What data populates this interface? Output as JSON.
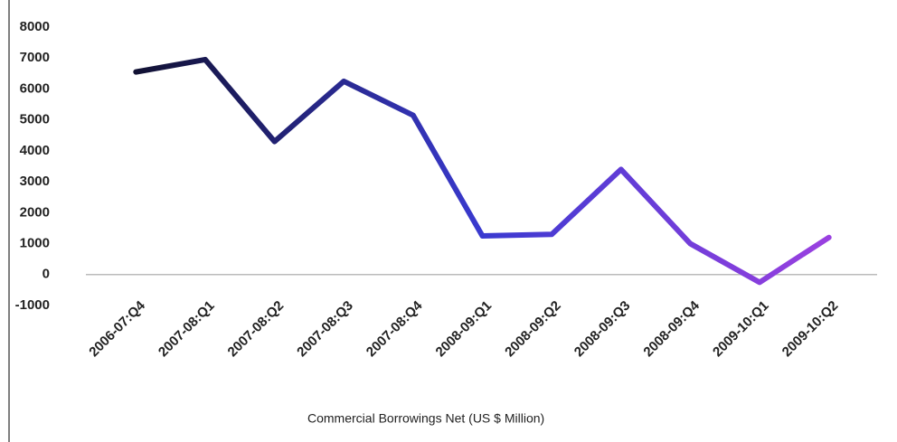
{
  "chart_data": {
    "type": "line",
    "categories": [
      "2006-07:Q4",
      "2007-08:Q1",
      "2007-08:Q2",
      "2007-08:Q3",
      "2007-08:Q4",
      "2008-09:Q1",
      "2008-09:Q2",
      "2008-09:Q3",
      "2008-09:Q4",
      "2009-10:Q1",
      "2009-10:Q2"
    ],
    "series": [
      {
        "name": "Commercial Borrowings  Net (US $ Million)",
        "color": "#2a2a8a",
        "values": [
          6550,
          6950,
          4300,
          6250,
          5150,
          1250,
          1300,
          3400,
          1000,
          -250,
          1200
        ]
      }
    ],
    "gradient": [
      "#111133",
      "#3a3ad0",
      "#9a40e0"
    ],
    "ylim": [
      -1000,
      8000
    ],
    "yticks": [
      -1000,
      0,
      1000,
      2000,
      3000,
      4000,
      5000,
      6000,
      7000,
      8000
    ],
    "grid": false,
    "legend": "bottom"
  }
}
